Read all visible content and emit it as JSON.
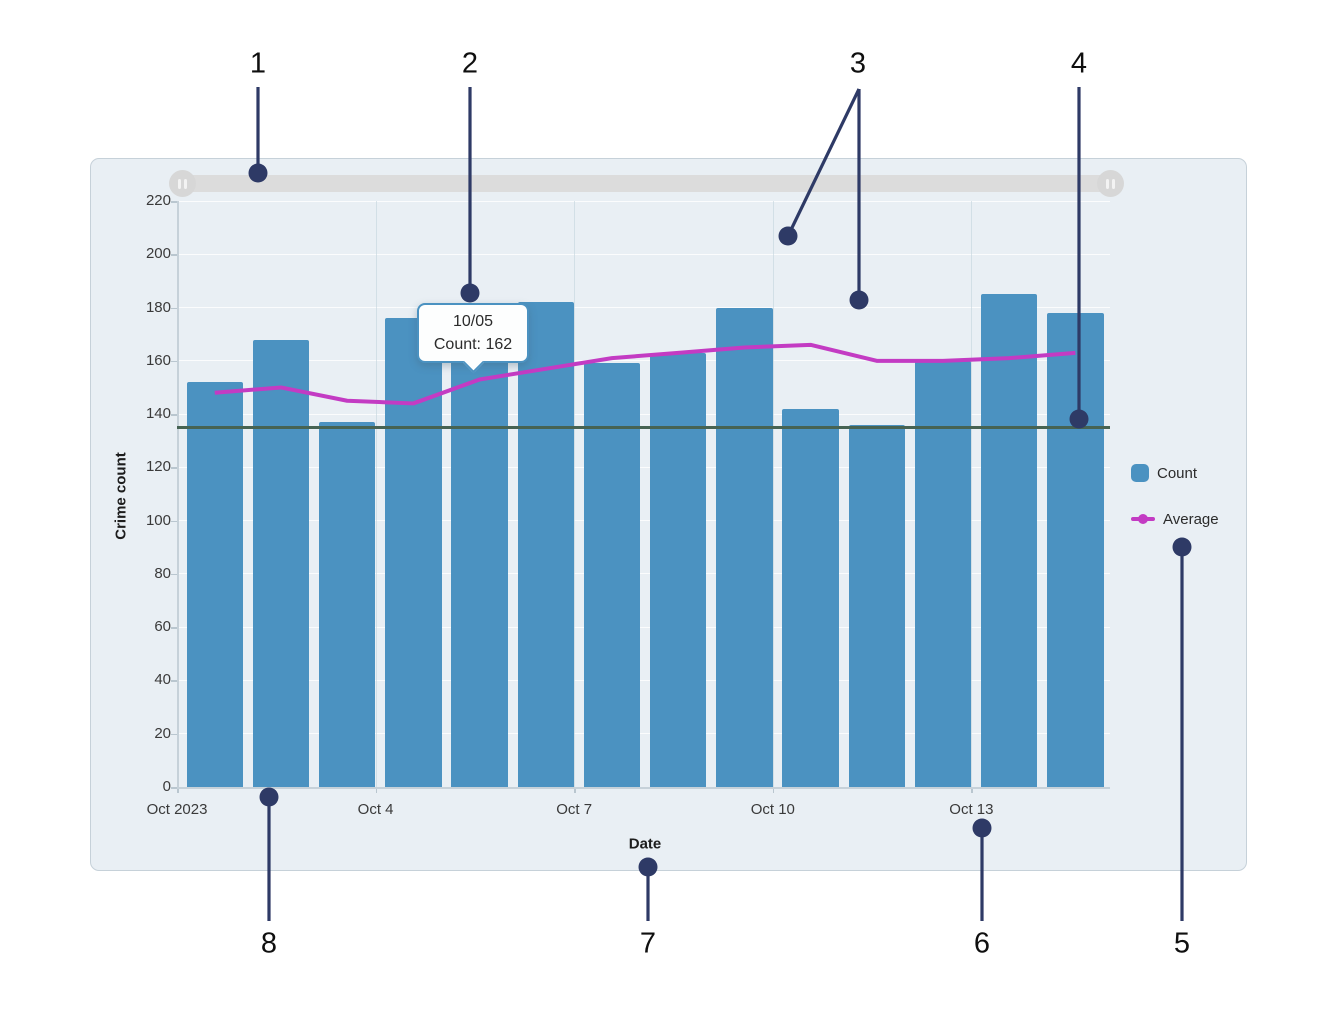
{
  "chart_data": {
    "type": "bar",
    "title": "",
    "xlabel": "Date",
    "ylabel": "Crime count",
    "ylim": [
      0,
      220
    ],
    "ytick_step": 20,
    "yticks": [
      0,
      20,
      40,
      60,
      80,
      100,
      120,
      140,
      160,
      180,
      200,
      220
    ],
    "grid": true,
    "legend_position": "right",
    "categories": [
      "10/01",
      "10/02",
      "10/03",
      "10/04",
      "10/05",
      "10/06",
      "10/07",
      "10/08",
      "10/09",
      "10/10",
      "10/11",
      "10/12",
      "10/13",
      "10/14"
    ],
    "xticks": [
      {
        "index": 0,
        "label": "Oct 2023"
      },
      {
        "index": 3,
        "label": "Oct 4"
      },
      {
        "index": 6,
        "label": "Oct 7"
      },
      {
        "index": 9,
        "label": "Oct 10"
      },
      {
        "index": 12,
        "label": "Oct 13"
      }
    ],
    "series": [
      {
        "name": "Count",
        "type": "bar",
        "color": "#4b92c1",
        "values": [
          152,
          168,
          137,
          176,
          162,
          182,
          159,
          163,
          180,
          142,
          136,
          160,
          185,
          178
        ]
      },
      {
        "name": "Average",
        "type": "line",
        "color": "#c33bc3",
        "values": [
          148,
          150,
          145,
          144,
          153,
          157,
          161,
          163,
          165,
          166,
          160,
          160,
          161,
          163
        ]
      }
    ],
    "reference_line": {
      "value": 135,
      "color": "#466353"
    }
  },
  "tooltip": {
    "line1": "10/05",
    "line2": "Count: 162"
  },
  "legend": {
    "items": [
      {
        "label": "Count",
        "marker": "square",
        "color": "#4b92c1"
      },
      {
        "label": "Average",
        "marker": "line-dot",
        "color": "#c33bc3"
      }
    ]
  },
  "slider": {
    "handle_icon": "grip-icon"
  },
  "callouts": {
    "numbers": [
      "1",
      "2",
      "3",
      "4",
      "5",
      "6",
      "7",
      "8"
    ],
    "color": "#2e3a66"
  }
}
